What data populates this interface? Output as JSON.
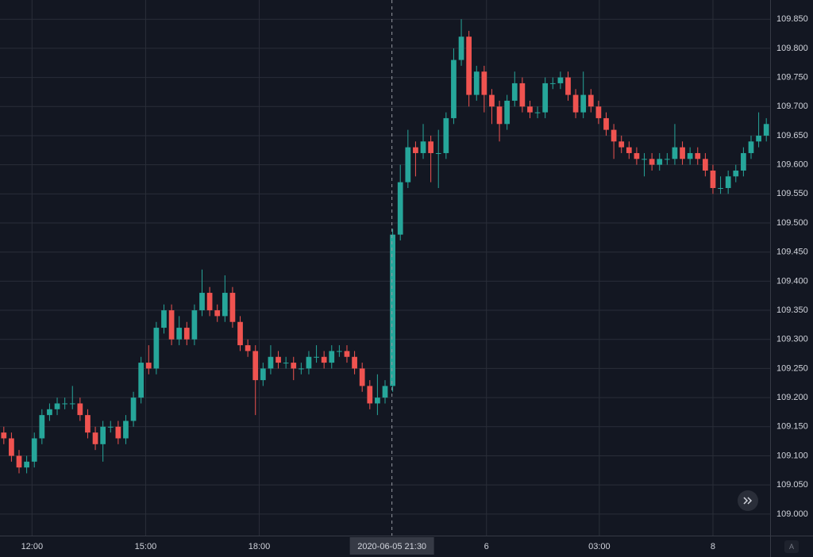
{
  "chart_data": {
    "type": "candlestick",
    "open": [
      109.14,
      109.13,
      109.1,
      109.08,
      109.09,
      109.13,
      109.17,
      109.18,
      109.19,
      109.19,
      109.19,
      109.17,
      109.14,
      109.12,
      109.15,
      109.15,
      109.13,
      109.16,
      109.2,
      109.26,
      109.25,
      109.32,
      109.35,
      109.3,
      109.32,
      109.3,
      109.35,
      109.38,
      109.35,
      109.34,
      109.38,
      109.33,
      109.29,
      109.28,
      109.23,
      109.25,
      109.27,
      109.26,
      109.26,
      109.25,
      109.25,
      109.27,
      109.27,
      109.26,
      109.28,
      109.28,
      109.27,
      109.25,
      109.22,
      109.19,
      109.2,
      109.22,
      109.48,
      109.57,
      109.63,
      109.62,
      109.64,
      109.62,
      109.62,
      109.68,
      109.78,
      109.82,
      109.72,
      109.76,
      109.72,
      109.7,
      109.67,
      109.71,
      109.74,
      109.7,
      109.69,
      109.69,
      109.74,
      109.74,
      109.75,
      109.72,
      109.69,
      109.72,
      109.7,
      109.68,
      109.66,
      109.64,
      109.63,
      109.62,
      109.61,
      109.61,
      109.6,
      109.61,
      109.61,
      109.63,
      109.61,
      109.62,
      109.61,
      109.59,
      109.56,
      109.56,
      109.58,
      109.59,
      109.62,
      109.64,
      109.65
    ],
    "high": [
      109.15,
      109.14,
      109.11,
      109.1,
      109.14,
      109.18,
      109.19,
      109.2,
      109.2,
      109.22,
      109.2,
      109.18,
      109.15,
      109.16,
      109.16,
      109.16,
      109.17,
      109.21,
      109.27,
      109.29,
      109.33,
      109.36,
      109.36,
      109.34,
      109.33,
      109.36,
      109.42,
      109.39,
      109.36,
      109.41,
      109.39,
      109.34,
      109.3,
      109.29,
      109.26,
      109.29,
      109.28,
      109.27,
      109.27,
      109.26,
      109.28,
      109.29,
      109.28,
      109.29,
      109.29,
      109.29,
      109.28,
      109.26,
      109.23,
      109.24,
      109.23,
      109.49,
      109.6,
      109.66,
      109.64,
      109.67,
      109.65,
      109.66,
      109.69,
      109.8,
      109.85,
      109.83,
      109.77,
      109.77,
      109.73,
      109.71,
      109.72,
      109.76,
      109.75,
      109.71,
      109.7,
      109.75,
      109.75,
      109.76,
      109.76,
      109.73,
      109.76,
      109.73,
      109.71,
      109.69,
      109.67,
      109.65,
      109.64,
      109.63,
      109.62,
      109.62,
      109.62,
      109.62,
      109.67,
      109.64,
      109.63,
      109.63,
      109.62,
      109.6,
      109.58,
      109.59,
      109.6,
      109.63,
      109.65,
      109.69,
      109.68
    ],
    "low": [
      109.12,
      109.09,
      109.07,
      109.07,
      109.08,
      109.12,
      109.16,
      109.17,
      109.18,
      109.18,
      109.16,
      109.13,
      109.11,
      109.09,
      109.14,
      109.12,
      109.12,
      109.15,
      109.19,
      109.24,
      109.24,
      109.31,
      109.29,
      109.29,
      109.29,
      109.29,
      109.34,
      109.34,
      109.33,
      109.33,
      109.32,
      109.28,
      109.27,
      109.17,
      109.22,
      109.24,
      109.25,
      109.25,
      109.23,
      109.24,
      109.24,
      109.26,
      109.25,
      109.25,
      109.27,
      109.26,
      109.24,
      109.21,
      109.18,
      109.17,
      109.19,
      109.21,
      109.47,
      109.56,
      109.58,
      109.61,
      109.57,
      109.56,
      109.61,
      109.67,
      109.77,
      109.7,
      109.71,
      109.69,
      109.67,
      109.64,
      109.66,
      109.7,
      109.69,
      109.68,
      109.68,
      109.68,
      109.73,
      109.73,
      109.71,
      109.68,
      109.68,
      109.69,
      109.67,
      109.65,
      109.61,
      109.62,
      109.61,
      109.6,
      109.58,
      109.59,
      109.59,
      109.6,
      109.6,
      109.6,
      109.6,
      109.6,
      109.58,
      109.55,
      109.55,
      109.55,
      109.57,
      109.58,
      109.61,
      109.63,
      109.64
    ],
    "close": [
      109.13,
      109.1,
      109.08,
      109.09,
      109.13,
      109.17,
      109.18,
      109.19,
      109.19,
      109.19,
      109.17,
      109.14,
      109.12,
      109.15,
      109.15,
      109.13,
      109.16,
      109.2,
      109.26,
      109.25,
      109.32,
      109.35,
      109.3,
      109.32,
      109.3,
      109.35,
      109.38,
      109.35,
      109.34,
      109.38,
      109.33,
      109.29,
      109.28,
      109.23,
      109.25,
      109.27,
      109.26,
      109.26,
      109.25,
      109.25,
      109.27,
      109.27,
      109.26,
      109.28,
      109.28,
      109.27,
      109.25,
      109.22,
      109.19,
      109.2,
      109.22,
      109.48,
      109.57,
      109.63,
      109.62,
      109.64,
      109.62,
      109.62,
      109.68,
      109.78,
      109.82,
      109.72,
      109.76,
      109.72,
      109.7,
      109.67,
      109.71,
      109.74,
      109.7,
      109.69,
      109.69,
      109.74,
      109.74,
      109.75,
      109.72,
      109.69,
      109.72,
      109.7,
      109.68,
      109.66,
      109.64,
      109.63,
      109.62,
      109.61,
      109.61,
      109.6,
      109.61,
      109.61,
      109.63,
      109.61,
      109.62,
      109.61,
      109.59,
      109.56,
      109.56,
      109.58,
      109.59,
      109.62,
      109.64,
      109.65,
      109.67
    ],
    "up_color": "#26a69a",
    "down_color": "#ef5350",
    "xlim": [
      0,
      101
    ],
    "xticks": [
      {
        "value": 4.2,
        "label": "12:00"
      },
      {
        "value": 19.1,
        "label": "15:00"
      },
      {
        "value": 34,
        "label": "18:00"
      },
      {
        "value": 63.8,
        "label": "6"
      },
      {
        "value": 78.6,
        "label": "03:00"
      },
      {
        "value": 93.5,
        "label": "8"
      }
    ],
    "crosshair": {
      "value": 51.4,
      "label": "2020-06-05   21:30"
    },
    "ylim": [
      108.963,
      109.883
    ],
    "yticks": [
      {
        "value": 109.0,
        "label": "109.000"
      },
      {
        "value": 109.05,
        "label": "109.050"
      },
      {
        "value": 109.1,
        "label": "109.100"
      },
      {
        "value": 109.15,
        "label": "109.150"
      },
      {
        "value": 109.2,
        "label": "109.200"
      },
      {
        "value": 109.25,
        "label": "109.250"
      },
      {
        "value": 109.3,
        "label": "109.300"
      },
      {
        "value": 109.35,
        "label": "109.350"
      },
      {
        "value": 109.4,
        "label": "109.400"
      },
      {
        "value": 109.45,
        "label": "109.450"
      },
      {
        "value": 109.5,
        "label": "109.500"
      },
      {
        "value": 109.55,
        "label": "109.550"
      },
      {
        "value": 109.6,
        "label": "109.600"
      },
      {
        "value": 109.65,
        "label": "109.650"
      },
      {
        "value": 109.7,
        "label": "109.700"
      },
      {
        "value": 109.75,
        "label": "109.750"
      },
      {
        "value": 109.8,
        "label": "109.800"
      },
      {
        "value": 109.85,
        "label": "109.850"
      }
    ],
    "grid": true
  },
  "ui": {
    "auto_scale_label": "A"
  }
}
